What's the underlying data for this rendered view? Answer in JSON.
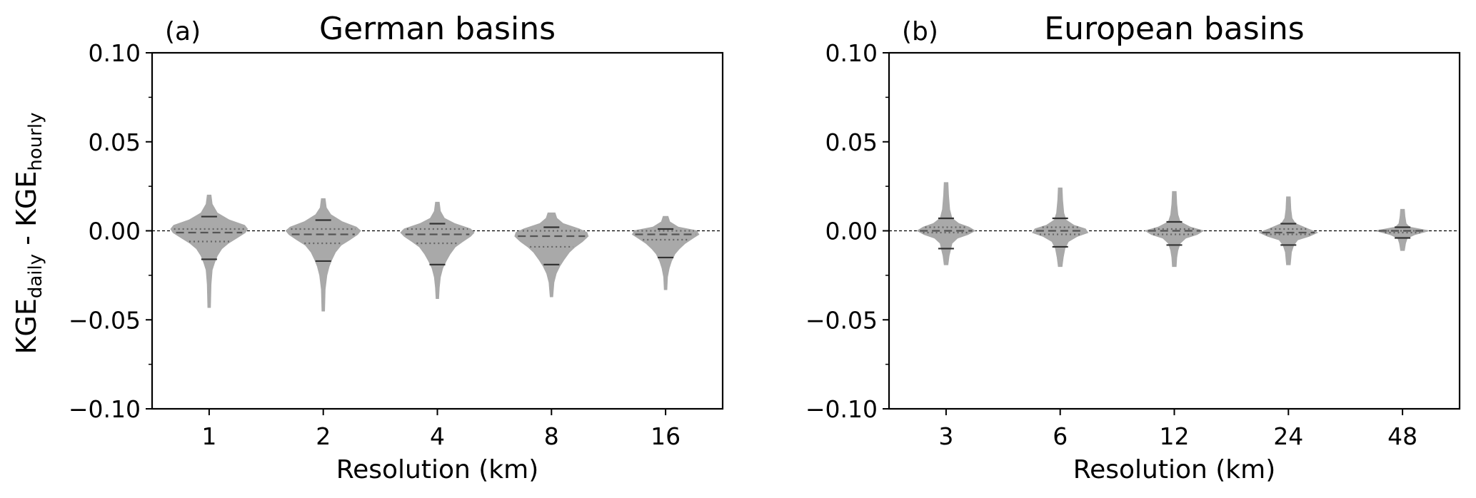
{
  "figure": {
    "ylabel_main_1": "KGE",
    "ylabel_sub_1": "daily",
    "ylabel_sep": " - ",
    "ylabel_main_2": "KGE",
    "ylabel_sub_2": "hourly"
  },
  "colors": {
    "violin": "#a9a9a9",
    "median_line": "#555555",
    "quartile_line": "#666666",
    "extrema_line": "#333333",
    "zero_line": "#000000"
  },
  "chart_data": [
    {
      "type": "violin",
      "panel_label": "(a)",
      "title": "German basins",
      "xlabel": "Resolution (km)",
      "ylabel": "KGE daily - KGE hourly",
      "categories": [
        "1",
        "2",
        "4",
        "8",
        "16"
      ],
      "ylim": [
        -0.1,
        0.1
      ],
      "yticks": [
        0.1,
        0.05,
        0.0,
        -0.05,
        -0.1
      ],
      "ytick_labels": [
        "0.10",
        "0.05",
        "0.00",
        "−0.05",
        "−0.10"
      ],
      "zero_reference_line": true,
      "grid": false,
      "distributions": [
        {
          "category": "1",
          "min": -0.043,
          "max": 0.02,
          "p10": -0.016,
          "q1": -0.006,
          "median": -0.001,
          "q3": 0.001,
          "p90": 0.008,
          "max_half_width": 0.67,
          "shape": [
            [
              0.02,
              0.03
            ],
            [
              0.015,
              0.05
            ],
            [
              0.01,
              0.14
            ],
            [
              0.006,
              0.35
            ],
            [
              0.003,
              0.62
            ],
            [
              0.001,
              0.67
            ],
            [
              -0.001,
              0.63
            ],
            [
              -0.004,
              0.48
            ],
            [
              -0.007,
              0.33
            ],
            [
              -0.01,
              0.22
            ],
            [
              -0.014,
              0.14
            ],
            [
              -0.018,
              0.09
            ],
            [
              -0.022,
              0.05
            ],
            [
              -0.03,
              0.03
            ],
            [
              -0.043,
              0.02
            ]
          ]
        },
        {
          "category": "2",
          "min": -0.045,
          "max": 0.018,
          "p10": -0.017,
          "q1": -0.007,
          "median": -0.002,
          "q3": 0.001,
          "p90": 0.006,
          "max_half_width": 0.65,
          "shape": [
            [
              0.018,
              0.03
            ],
            [
              0.013,
              0.05
            ],
            [
              0.009,
              0.13
            ],
            [
              0.005,
              0.33
            ],
            [
              0.002,
              0.58
            ],
            [
              0.0,
              0.65
            ],
            [
              -0.002,
              0.6
            ],
            [
              -0.005,
              0.46
            ],
            [
              -0.008,
              0.31
            ],
            [
              -0.012,
              0.21
            ],
            [
              -0.016,
              0.15
            ],
            [
              -0.02,
              0.1
            ],
            [
              -0.025,
              0.06
            ],
            [
              -0.033,
              0.03
            ],
            [
              -0.045,
              0.02
            ]
          ]
        },
        {
          "category": "4",
          "min": -0.038,
          "max": 0.016,
          "p10": -0.019,
          "q1": -0.007,
          "median": -0.002,
          "q3": 0.001,
          "p90": 0.004,
          "max_half_width": 0.64,
          "shape": [
            [
              0.016,
              0.03
            ],
            [
              0.011,
              0.05
            ],
            [
              0.007,
              0.12
            ],
            [
              0.004,
              0.3
            ],
            [
              0.001,
              0.58
            ],
            [
              -0.001,
              0.64
            ],
            [
              -0.003,
              0.58
            ],
            [
              -0.006,
              0.44
            ],
            [
              -0.009,
              0.31
            ],
            [
              -0.013,
              0.22
            ],
            [
              -0.017,
              0.15
            ],
            [
              -0.021,
              0.09
            ],
            [
              -0.026,
              0.05
            ],
            [
              -0.032,
              0.03
            ],
            [
              -0.038,
              0.02
            ]
          ]
        },
        {
          "category": "8",
          "min": -0.037,
          "max": 0.01,
          "p10": -0.019,
          "q1": -0.009,
          "median": -0.003,
          "q3": 0.0,
          "p90": 0.002,
          "max_half_width": 0.64,
          "shape": [
            [
              0.01,
              0.06
            ],
            [
              0.007,
              0.09
            ],
            [
              0.004,
              0.2
            ],
            [
              0.001,
              0.48
            ],
            [
              -0.001,
              0.62
            ],
            [
              -0.003,
              0.64
            ],
            [
              -0.006,
              0.54
            ],
            [
              -0.009,
              0.41
            ],
            [
              -0.012,
              0.31
            ],
            [
              -0.016,
              0.22
            ],
            [
              -0.02,
              0.14
            ],
            [
              -0.024,
              0.08
            ],
            [
              -0.029,
              0.04
            ],
            [
              -0.037,
              0.02
            ]
          ]
        },
        {
          "category": "16",
          "min": -0.033,
          "max": 0.008,
          "p10": -0.015,
          "q1": -0.005,
          "median": -0.002,
          "q3": 0.0,
          "p90": 0.001,
          "max_half_width": 0.58,
          "shape": [
            [
              0.008,
              0.04
            ],
            [
              0.005,
              0.07
            ],
            [
              0.002,
              0.22
            ],
            [
              0.0,
              0.54
            ],
            [
              -0.002,
              0.58
            ],
            [
              -0.004,
              0.48
            ],
            [
              -0.007,
              0.34
            ],
            [
              -0.01,
              0.24
            ],
            [
              -0.013,
              0.16
            ],
            [
              -0.017,
              0.1
            ],
            [
              -0.021,
              0.06
            ],
            [
              -0.026,
              0.03
            ],
            [
              -0.033,
              0.02
            ]
          ]
        }
      ]
    },
    {
      "type": "violin",
      "panel_label": "(b)",
      "title": "European basins",
      "xlabel": "Resolution (km)",
      "ylabel": "",
      "categories": [
        "3",
        "6",
        "12",
        "24",
        "48"
      ],
      "ylim": [
        -0.1,
        0.1
      ],
      "yticks": [
        0.1,
        0.05,
        0.0,
        -0.05,
        -0.1
      ],
      "ytick_labels": [
        "0.10",
        "0.05",
        "0.00",
        "−0.05",
        "−0.10"
      ],
      "zero_reference_line": true,
      "grid": false,
      "distributions": [
        {
          "category": "3",
          "min": -0.019,
          "max": 0.027,
          "p10": -0.01,
          "q1": -0.001,
          "median": 0.0,
          "q3": 0.002,
          "p90": 0.007,
          "max_half_width": 0.5,
          "shape": [
            [
              0.027,
              0.03
            ],
            [
              0.02,
              0.04
            ],
            [
              0.012,
              0.06
            ],
            [
              0.007,
              0.1
            ],
            [
              0.004,
              0.22
            ],
            [
              0.002,
              0.4
            ],
            [
              0.0,
              0.5
            ],
            [
              -0.002,
              0.38
            ],
            [
              -0.004,
              0.2
            ],
            [
              -0.007,
              0.1
            ],
            [
              -0.01,
              0.08
            ],
            [
              -0.014,
              0.05
            ],
            [
              -0.019,
              0.03
            ]
          ]
        },
        {
          "category": "6",
          "min": -0.02,
          "max": 0.024,
          "p10": -0.009,
          "q1": -0.002,
          "median": 0.0,
          "q3": 0.002,
          "p90": 0.007,
          "max_half_width": 0.48,
          "shape": [
            [
              0.024,
              0.03
            ],
            [
              0.017,
              0.04
            ],
            [
              0.01,
              0.06
            ],
            [
              0.006,
              0.1
            ],
            [
              0.003,
              0.24
            ],
            [
              0.001,
              0.44
            ],
            [
              -0.001,
              0.48
            ],
            [
              -0.003,
              0.3
            ],
            [
              -0.006,
              0.14
            ],
            [
              -0.01,
              0.08
            ],
            [
              -0.015,
              0.05
            ],
            [
              -0.02,
              0.03
            ]
          ]
        },
        {
          "category": "12",
          "min": -0.02,
          "max": 0.022,
          "p10": -0.008,
          "q1": -0.002,
          "median": 0.0,
          "q3": 0.001,
          "p90": 0.005,
          "max_half_width": 0.5,
          "shape": [
            [
              0.022,
              0.03
            ],
            [
              0.015,
              0.04
            ],
            [
              0.009,
              0.06
            ],
            [
              0.005,
              0.1
            ],
            [
              0.002,
              0.28
            ],
            [
              0.0,
              0.5
            ],
            [
              -0.002,
              0.4
            ],
            [
              -0.004,
              0.2
            ],
            [
              -0.007,
              0.1
            ],
            [
              -0.011,
              0.06
            ],
            [
              -0.015,
              0.04
            ],
            [
              -0.02,
              0.03
            ]
          ]
        },
        {
          "category": "24",
          "min": -0.019,
          "max": 0.019,
          "p10": -0.008,
          "q1": -0.002,
          "median": -0.001,
          "q3": 0.001,
          "p90": 0.004,
          "max_half_width": 0.5,
          "shape": [
            [
              0.019,
              0.03
            ],
            [
              0.012,
              0.04
            ],
            [
              0.007,
              0.06
            ],
            [
              0.004,
              0.12
            ],
            [
              0.001,
              0.34
            ],
            [
              -0.001,
              0.5
            ],
            [
              -0.003,
              0.36
            ],
            [
              -0.005,
              0.16
            ],
            [
              -0.008,
              0.09
            ],
            [
              -0.012,
              0.05
            ],
            [
              -0.019,
              0.03
            ]
          ]
        },
        {
          "category": "48",
          "min": -0.011,
          "max": 0.012,
          "p10": -0.004,
          "q1": -0.001,
          "median": 0.0,
          "q3": 0.0,
          "p90": 0.002,
          "max_half_width": 0.45,
          "shape": [
            [
              0.012,
              0.03
            ],
            [
              0.008,
              0.04
            ],
            [
              0.004,
              0.06
            ],
            [
              0.002,
              0.12
            ],
            [
              0.0,
              0.45
            ],
            [
              -0.002,
              0.22
            ],
            [
              -0.004,
              0.08
            ],
            [
              -0.007,
              0.05
            ],
            [
              -0.011,
              0.03
            ]
          ]
        }
      ]
    }
  ]
}
